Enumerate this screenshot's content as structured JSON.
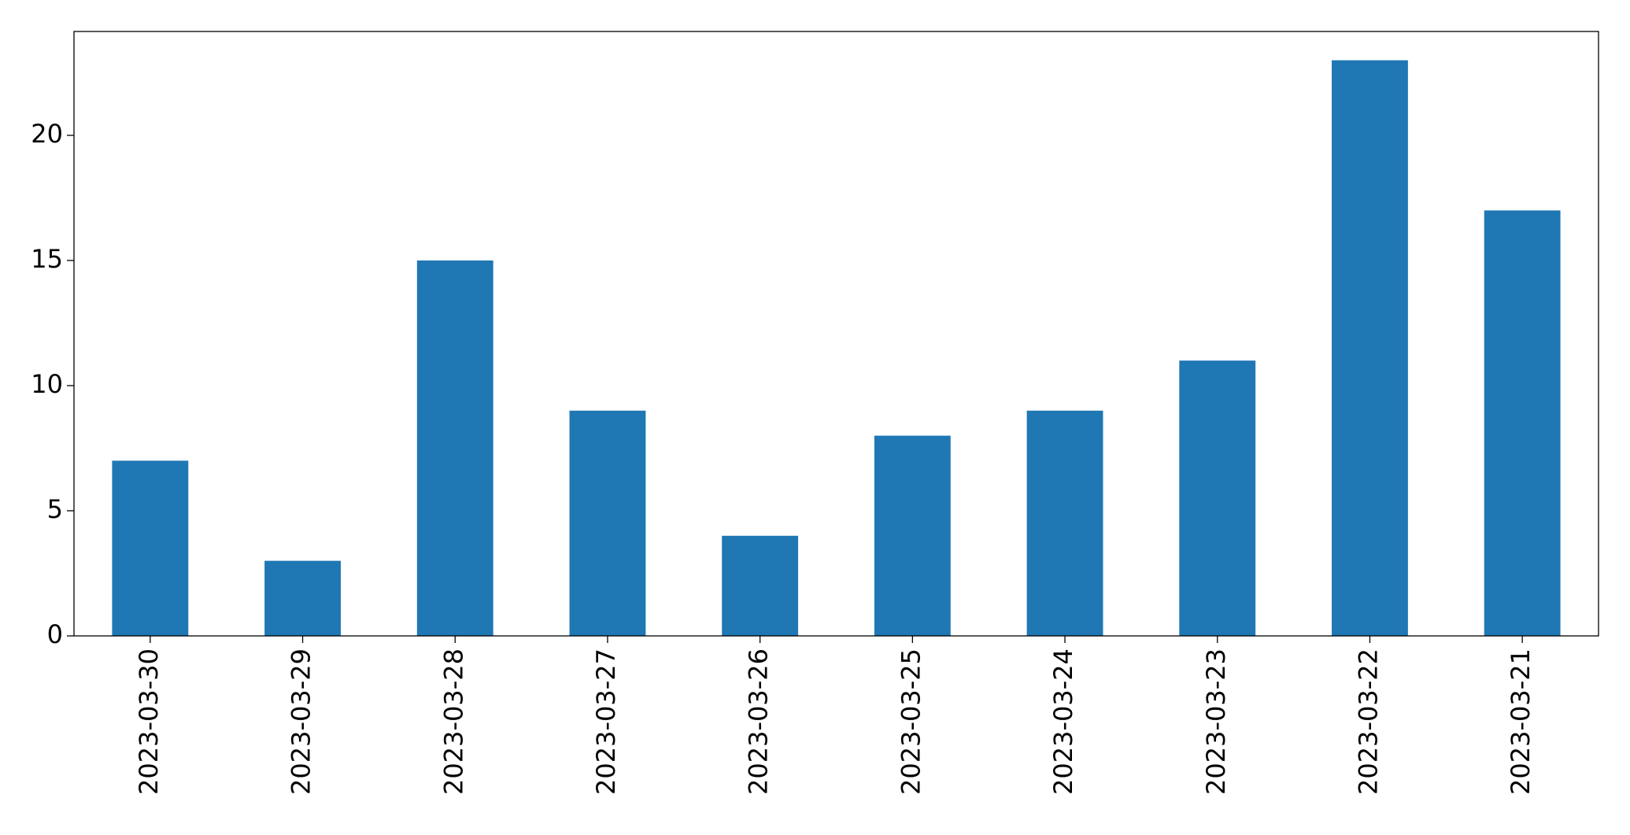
{
  "chart_data": {
    "type": "bar",
    "categories": [
      "2023-03-30",
      "2023-03-29",
      "2023-03-28",
      "2023-03-27",
      "2023-03-26",
      "2023-03-25",
      "2023-03-24",
      "2023-03-23",
      "2023-03-22",
      "2023-03-21"
    ],
    "values": [
      7,
      3,
      15,
      9,
      4,
      8,
      9,
      11,
      23,
      17
    ],
    "color": "#1f77b4",
    "ylim": [
      0,
      24.15
    ],
    "yticks": [
      0,
      5,
      10,
      15,
      20
    ],
    "grid": false
  }
}
